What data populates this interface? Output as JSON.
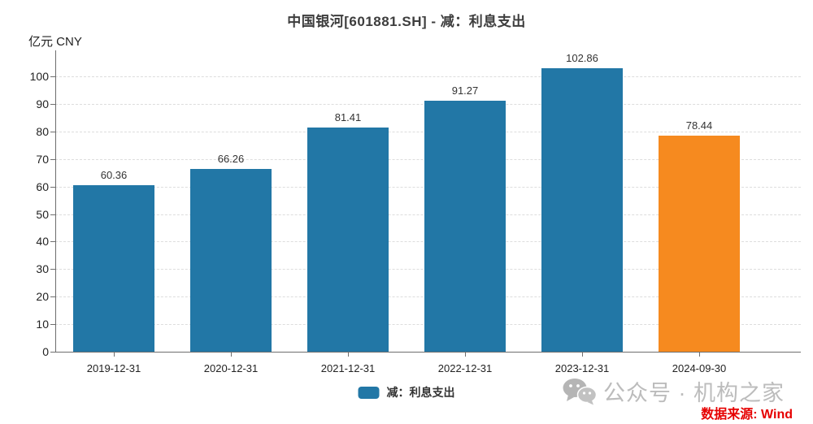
{
  "title": "中国银河[601881.SH] - 减：利息支出",
  "unit_label": "亿元 CNY",
  "legend": {
    "label": "减：利息支出",
    "color": "#2277a6"
  },
  "watermark": {
    "icon": "wechat-icon",
    "text": "公众号 · 机构之家",
    "source": "数据来源: Wind"
  },
  "colors": {
    "bar_blue": "#2277a6",
    "bar_orange": "#f68a1f",
    "grid": "#dddddd",
    "axis": "#6e6e6e",
    "text": "#333333",
    "watermark_gray": "#bcbcbc",
    "source_red": "#e60000"
  },
  "chart_data": {
    "type": "bar",
    "title": "中国银河[601881.SH] - 减：利息支出",
    "categories": [
      "2019-12-31",
      "2020-12-31",
      "2021-12-31",
      "2022-12-31",
      "2023-12-31",
      "2024-09-30"
    ],
    "series": [
      {
        "name": "减：利息支出",
        "values": [
          60.36,
          66.26,
          81.41,
          91.27,
          102.86,
          78.44
        ]
      }
    ],
    "bar_colors": [
      "#2277a6",
      "#2277a6",
      "#2277a6",
      "#2277a6",
      "#2277a6",
      "#f68a1f"
    ],
    "xlabel": "",
    "ylabel": "亿元 CNY",
    "ylim": [
      0,
      110
    ],
    "yticks": [
      0,
      10,
      20,
      30,
      40,
      50,
      60,
      70,
      80,
      90,
      100
    ],
    "grid": true,
    "legend_position": "bottom"
  }
}
